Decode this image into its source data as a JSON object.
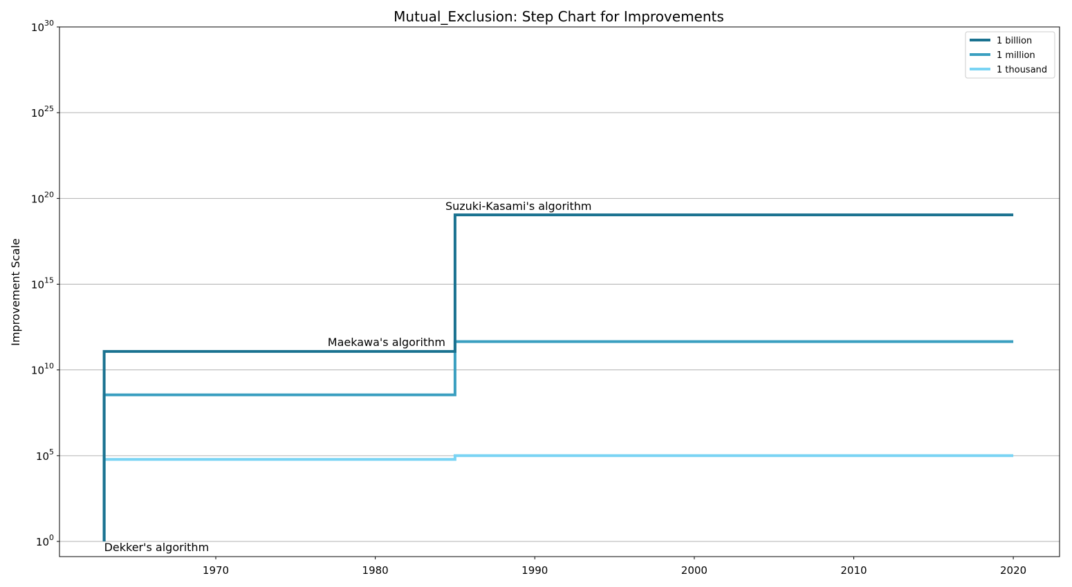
{
  "chart_data": {
    "type": "line",
    "step": "post",
    "title": "Mutual_Exclusion: Step Chart for Improvements",
    "xlabel": "",
    "ylabel": "Improvement Scale",
    "yscale": "log",
    "xlim": [
      1960.2,
      2022.9
    ],
    "ylim": [
      1,
      1e+30
    ],
    "grid": "horizontal",
    "legend_position": "top-right",
    "x_ticks": [
      1970,
      1980,
      1990,
      2000,
      2010,
      2020
    ],
    "x_tick_labels": [
      "1970",
      "1980",
      "1990",
      "2000",
      "2010",
      "2020"
    ],
    "y_ticks": [
      {
        "value": 1,
        "base": "10",
        "exp": "0"
      },
      {
        "value": 100000.0,
        "base": "10",
        "exp": "5"
      },
      {
        "value": 10000000000.0,
        "base": "10",
        "exp": "10"
      },
      {
        "value": 1000000000000000.0,
        "base": "10",
        "exp": "15"
      },
      {
        "value": 1e+20,
        "base": "10",
        "exp": "20"
      },
      {
        "value": 1e+25,
        "base": "10",
        "exp": "25"
      },
      {
        "value": 1e+30,
        "base": "10",
        "exp": "30"
      }
    ],
    "series": [
      {
        "name": "1 billion",
        "color": "#1a7290",
        "x": [
          1963,
          1963,
          1985,
          1985,
          2020
        ],
        "y": [
          1,
          120000000000.0,
          120000000000.0,
          1.1e+19,
          1.1e+19
        ]
      },
      {
        "name": "1 million",
        "color": "#3a9fc0",
        "x": [
          1963,
          1963,
          1985,
          1985,
          2020
        ],
        "y": [
          1,
          350000000.0,
          350000000.0,
          450000000000.0,
          450000000000.0
        ]
      },
      {
        "name": "1 thousand",
        "color": "#7ad4f4",
        "x": [
          1963,
          1963,
          1985,
          1985,
          2020
        ],
        "y": [
          1,
          60000.0,
          60000.0,
          100000.0,
          100000.0
        ]
      }
    ],
    "annotations": [
      {
        "text": "Dekker's algorithm",
        "x": 1963,
        "y": 1
      },
      {
        "text": "Maekawa's algorithm",
        "x": 1985,
        "y": 120000000000.0
      },
      {
        "text": "Suzuki-Kasami's algorithm",
        "x": 1985,
        "y": 1.1e+19
      }
    ]
  }
}
